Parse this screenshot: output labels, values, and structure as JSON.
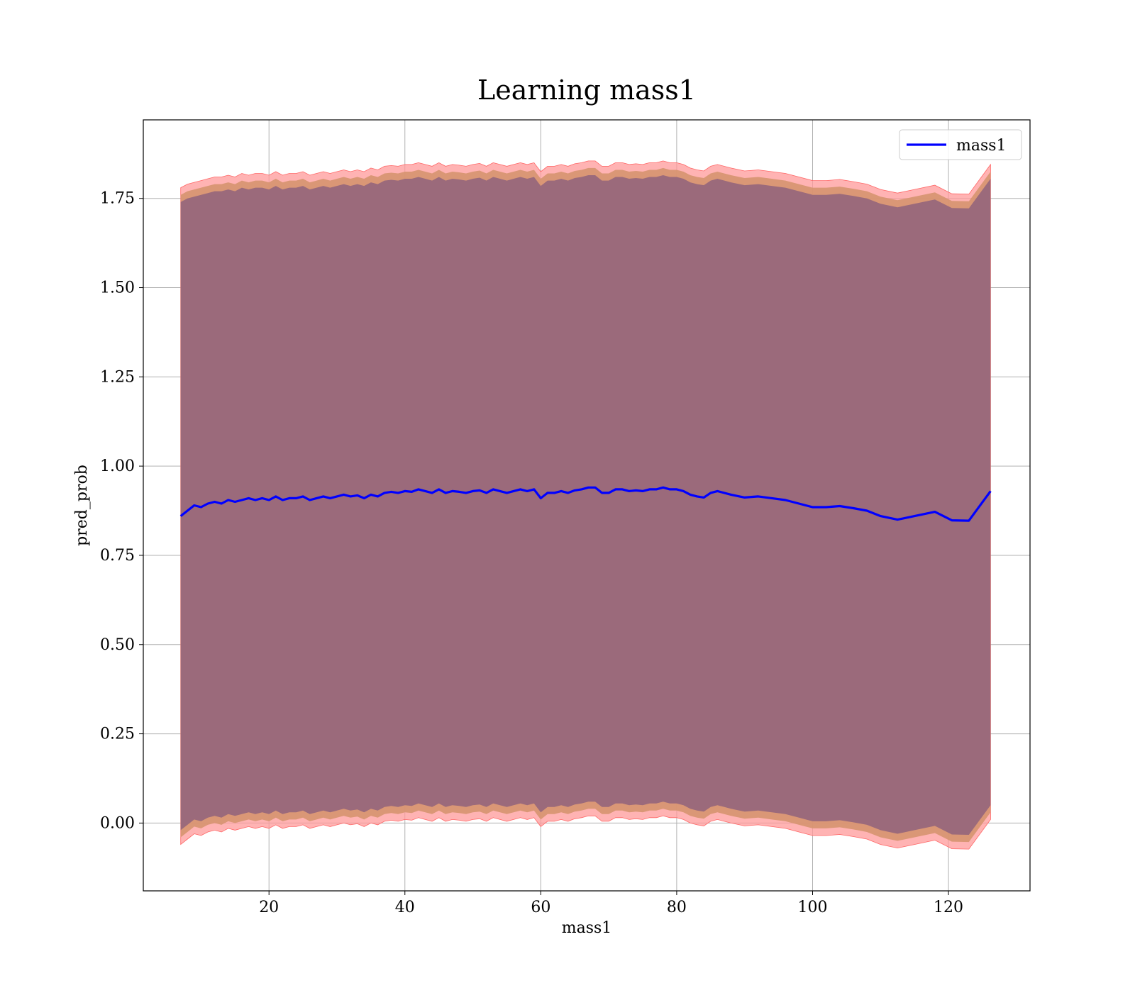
{
  "chart_data": {
    "type": "line",
    "title": "Learning mass1",
    "xlabel": "mass1",
    "ylabel": "pred_prob",
    "xlim": [
      1.5,
      132
    ],
    "ylim": [
      -0.19,
      1.97
    ],
    "xticks": [
      20,
      40,
      60,
      80,
      100,
      120
    ],
    "yticks": [
      0.0,
      0.25,
      0.5,
      0.75,
      1.0,
      1.25,
      1.5,
      1.75
    ],
    "xtick_labels": [
      "20",
      "40",
      "60",
      "80",
      "100",
      "120"
    ],
    "ytick_labels": [
      "0.00",
      "0.25",
      "0.50",
      "0.75",
      "1.00",
      "1.25",
      "1.50",
      "1.75"
    ],
    "grid": true,
    "legend": {
      "position": "upper right",
      "entries": [
        "mass1"
      ]
    },
    "colors": {
      "line": "#0000ff",
      "band_outer": "#ff9999",
      "band_mid": "#d6936f",
      "band_inner": "#9b6a7b"
    },
    "series": [
      {
        "name": "mass1",
        "x": [
          7,
          8,
          9,
          10,
          11,
          12,
          13,
          14,
          15,
          16,
          17,
          18,
          19,
          20,
          21,
          22,
          23,
          24,
          25,
          26,
          27,
          28,
          29,
          30,
          31,
          32,
          33,
          34,
          35,
          36,
          37,
          38,
          39,
          40,
          41,
          42,
          43,
          44,
          45,
          46,
          47,
          48,
          49,
          50,
          51,
          52,
          53,
          54,
          55,
          56,
          57,
          58,
          59,
          60,
          61,
          62,
          63,
          64,
          65,
          66,
          67,
          68,
          69,
          70,
          71,
          72,
          73,
          74,
          75,
          76,
          77,
          78,
          79,
          80,
          81,
          82,
          83,
          84,
          85,
          86,
          88,
          90,
          92,
          94,
          96,
          98,
          100,
          102,
          104,
          106,
          108,
          110,
          112.5,
          115,
          118,
          120.5,
          123,
          126.2
        ],
        "y": [
          0.86,
          0.875,
          0.89,
          0.885,
          0.895,
          0.9,
          0.895,
          0.905,
          0.9,
          0.905,
          0.91,
          0.905,
          0.91,
          0.905,
          0.915,
          0.905,
          0.91,
          0.91,
          0.915,
          0.905,
          0.91,
          0.915,
          0.91,
          0.915,
          0.92,
          0.915,
          0.918,
          0.91,
          0.92,
          0.915,
          0.925,
          0.928,
          0.925,
          0.93,
          0.928,
          0.935,
          0.93,
          0.925,
          0.935,
          0.925,
          0.93,
          0.928,
          0.925,
          0.93,
          0.932,
          0.925,
          0.935,
          0.93,
          0.925,
          0.93,
          0.935,
          0.93,
          0.935,
          0.91,
          0.925,
          0.925,
          0.93,
          0.925,
          0.932,
          0.935,
          0.94,
          0.94,
          0.925,
          0.925,
          0.935,
          0.935,
          0.93,
          0.932,
          0.93,
          0.935,
          0.935,
          0.94,
          0.935,
          0.935,
          0.93,
          0.92,
          0.915,
          0.912,
          0.925,
          0.93,
          0.92,
          0.912,
          0.915,
          0.91,
          0.905,
          0.895,
          0.885,
          0.885,
          0.888,
          0.882,
          0.875,
          0.86,
          0.85,
          0.86,
          0.872,
          0.848,
          0.847,
          0.93
        ],
        "band_upper": [
          1.78,
          1.79,
          1.795,
          1.8,
          1.805,
          1.81,
          1.81,
          1.815,
          1.81,
          1.82,
          1.815,
          1.82,
          1.82,
          1.815,
          1.825,
          1.815,
          1.82,
          1.82,
          1.825,
          1.815,
          1.82,
          1.825,
          1.82,
          1.825,
          1.83,
          1.825,
          1.83,
          1.825,
          1.835,
          1.83,
          1.84,
          1.842,
          1.84,
          1.845,
          1.845,
          1.85,
          1.845,
          1.84,
          1.85,
          1.84,
          1.845,
          1.843,
          1.84,
          1.845,
          1.848,
          1.84,
          1.85,
          1.845,
          1.84,
          1.845,
          1.85,
          1.845,
          1.85,
          1.825,
          1.84,
          1.84,
          1.845,
          1.84,
          1.847,
          1.85,
          1.855,
          1.855,
          1.84,
          1.84,
          1.85,
          1.85,
          1.845,
          1.847,
          1.845,
          1.85,
          1.85,
          1.855,
          1.85,
          1.85,
          1.845,
          1.835,
          1.83,
          1.827,
          1.84,
          1.845,
          1.835,
          1.827,
          1.83,
          1.825,
          1.82,
          1.81,
          1.8,
          1.8,
          1.803,
          1.797,
          1.79,
          1.775,
          1.765,
          1.775,
          1.787,
          1.763,
          1.762,
          1.845
        ],
        "band_lower": [
          -0.06,
          -0.045,
          -0.03,
          -0.035,
          -0.025,
          -0.02,
          -0.025,
          -0.015,
          -0.02,
          -0.015,
          -0.01,
          -0.015,
          -0.01,
          -0.015,
          -0.005,
          -0.015,
          -0.01,
          -0.01,
          -0.005,
          -0.015,
          -0.01,
          -0.005,
          -0.01,
          -0.005,
          0.0,
          -0.005,
          -0.002,
          -0.01,
          0.0,
          -0.005,
          0.005,
          0.008,
          0.005,
          0.01,
          0.008,
          0.015,
          0.01,
          0.005,
          0.015,
          0.005,
          0.01,
          0.008,
          0.005,
          0.01,
          0.012,
          0.005,
          0.015,
          0.01,
          0.005,
          0.01,
          0.015,
          0.01,
          0.015,
          -0.01,
          0.005,
          0.005,
          0.01,
          0.005,
          0.012,
          0.015,
          0.02,
          0.02,
          0.005,
          0.005,
          0.015,
          0.015,
          0.01,
          0.012,
          0.01,
          0.015,
          0.015,
          0.02,
          0.015,
          0.015,
          0.01,
          0.0,
          -0.005,
          -0.008,
          0.005,
          0.01,
          0.0,
          -0.008,
          -0.005,
          -0.01,
          -0.015,
          -0.025,
          -0.035,
          -0.035,
          -0.032,
          -0.038,
          -0.045,
          -0.06,
          -0.07,
          -0.06,
          -0.048,
          -0.072,
          -0.073,
          0.01
        ]
      }
    ]
  }
}
